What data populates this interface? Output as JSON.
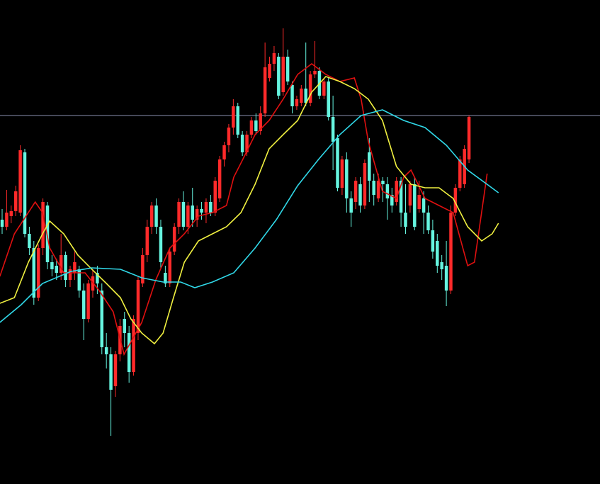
{
  "chart_data": {
    "type": "candlestick",
    "xlim": [
      -0.47,
      131.9
    ],
    "ylim": [
      0,
      683
    ],
    "up_color": "#ff2a2a",
    "down_color": "#66f5e0",
    "open": [
      373,
      363,
      378,
      385,
      383,
      468,
      353,
      333,
      263,
      333,
      393,
      313,
      308,
      298,
      323,
      288,
      298,
      303,
      273,
      233,
      273,
      298,
      273,
      193,
      183,
      138,
      183,
      233,
      213,
      158,
      213,
      283,
      323,
      363,
      393,
      363,
      298,
      283,
      328,
      363,
      398,
      363,
      393,
      373,
      388,
      383,
      398,
      383,
      403,
      458,
      478,
      503,
      533,
      493,
      468,
      493,
      513,
      498,
      523,
      573,
      593,
      603,
      553,
      603,
      563,
      533,
      538,
      558,
      538,
      578,
      583,
      548,
      568,
      518,
      488,
      418,
      458,
      403,
      398,
      423,
      393,
      468,
      428,
      403,
      428,
      423,
      408,
      398,
      428,
      383,
      393,
      423,
      388,
      403,
      383,
      358,
      343,
      313,
      308,
      273,
      383,
      418,
      423,
      458
    ],
    "high": [
      388,
      415,
      393,
      421,
      478,
      473,
      363,
      343,
      338,
      403,
      398,
      323,
      318,
      353,
      328,
      308,
      328,
      308,
      283,
      288,
      303,
      308,
      283,
      213,
      193,
      188,
      233,
      243,
      223,
      238,
      293,
      333,
      373,
      398,
      403,
      373,
      308,
      333,
      368,
      403,
      413,
      398,
      418,
      393,
      398,
      403,
      408,
      433,
      463,
      483,
      508,
      543,
      538,
      498,
      498,
      518,
      523,
      533,
      623,
      603,
      618,
      608,
      643,
      613,
      568,
      548,
      563,
      623,
      583,
      625,
      588,
      573,
      573,
      548,
      493,
      463,
      468,
      413,
      433,
      433,
      458,
      488,
      438,
      438,
      433,
      433,
      418,
      433,
      433,
      423,
      428,
      433,
      428,
      413,
      393,
      373,
      353,
      323,
      343,
      393,
      423,
      463,
      478,
      520
    ],
    "low": [
      353,
      358,
      368,
      378,
      378,
      348,
      323,
      253,
      258,
      323,
      303,
      293,
      288,
      288,
      278,
      278,
      288,
      263,
      203,
      228,
      263,
      268,
      183,
      163,
      68,
      123,
      173,
      193,
      143,
      153,
      203,
      278,
      313,
      353,
      353,
      303,
      278,
      278,
      323,
      353,
      358,
      353,
      363,
      363,
      373,
      368,
      378,
      378,
      398,
      448,
      468,
      493,
      488,
      463,
      463,
      488,
      493,
      493,
      518,
      568,
      583,
      543,
      548,
      563,
      523,
      528,
      533,
      533,
      533,
      573,
      543,
      543,
      513,
      443,
      413,
      408,
      383,
      363,
      388,
      383,
      388,
      398,
      393,
      398,
      398,
      373,
      383,
      393,
      363,
      353,
      383,
      358,
      383,
      353,
      353,
      318,
      298,
      288,
      251,
      268,
      378,
      413,
      418,
      453
    ],
    "close": [
      363,
      383,
      385,
      413,
      471,
      353,
      333,
      263,
      333,
      398,
      313,
      303,
      298,
      323,
      288,
      303,
      313,
      273,
      233,
      283,
      293,
      283,
      193,
      183,
      133,
      183,
      223,
      213,
      158,
      233,
      288,
      323,
      363,
      393,
      363,
      313,
      283,
      328,
      363,
      398,
      363,
      393,
      373,
      388,
      383,
      398,
      383,
      428,
      458,
      478,
      503,
      533,
      493,
      468,
      493,
      513,
      498,
      523,
      588,
      593,
      608,
      548,
      603,
      568,
      533,
      543,
      558,
      538,
      578,
      583,
      548,
      568,
      518,
      483,
      418,
      458,
      403,
      383,
      428,
      393,
      453,
      428,
      408,
      428,
      423,
      403,
      393,
      428,
      383,
      363,
      423,
      363,
      408,
      383,
      358,
      328,
      308,
      303,
      273,
      383,
      418,
      458,
      473,
      518
    ],
    "lines": [
      {
        "color": "#e01010",
        "x": [
          -0.5,
          2.7,
          7.3,
          8.9,
          10.5,
          13.6,
          18.3,
          21.4,
          24.5,
          26.9,
          30.8,
          33.9,
          37,
          40.2,
          43.3,
          46.4,
          49.5,
          51.1,
          52.7,
          55.8,
          58.9,
          62,
          65.2,
          68.3,
          71.4,
          74.5,
          77.7,
          79.2,
          80.8,
          83.9,
          87,
          88.6,
          90.2,
          93.3,
          96.4,
          99.5,
          102.7,
          104.2,
          107
        ],
        "values": [
          293,
          353,
          398,
          383,
          333,
          298,
          298,
          273,
          243,
          183,
          228,
          288,
          333,
          353,
          378,
          383,
          393,
          433,
          453,
          493,
          513,
          543,
          578,
          593,
          578,
          568,
          573,
          543,
          483,
          413,
          403,
          433,
          443,
          403,
          393,
          383,
          308,
          313,
          438
        ]
      },
      {
        "color": "#f0f040",
        "x": [
          -0.5,
          2.7,
          5.8,
          8.9,
          10.5,
          13.6,
          16.7,
          19.8,
          23,
          26.1,
          28.4,
          30.8,
          33.6,
          35.5,
          37.8,
          40.2,
          43.3,
          46.4,
          49.5,
          52.7,
          55.8,
          58.9,
          62,
          65.2,
          68.3,
          71.4,
          74.5,
          77.7,
          80.8,
          83.9,
          87,
          90.2,
          93.3,
          96.4,
          99.5,
          102.7,
          105.8,
          108.1,
          109.5
        ],
        "values": [
          255,
          263,
          313,
          353,
          371,
          353,
          323,
          303,
          283,
          263,
          233,
          213,
          198,
          213,
          263,
          313,
          343,
          353,
          363,
          383,
          423,
          473,
          493,
          513,
          553,
          575,
          568,
          558,
          543,
          513,
          448,
          423,
          418,
          418,
          403,
          363,
          343,
          353,
          368
        ]
      },
      {
        "color": "#30d8e8",
        "x": [
          -0.5,
          4.2,
          8.9,
          15.2,
          19.8,
          26.1,
          30.8,
          35.5,
          39.4,
          42.5,
          46.4,
          51.1,
          55.8,
          60.5,
          65.2,
          69.8,
          74.5,
          79.2,
          83.9,
          88.6,
          93.3,
          98,
          102.7,
          107.4,
          109.5
        ],
        "values": [
          228,
          253,
          283,
          300,
          305,
          303,
          291,
          285,
          285,
          277,
          285,
          298,
          333,
          373,
          421,
          458,
          493,
          520,
          528,
          513,
          503,
          478,
          443,
          421,
          411
        ]
      }
    ],
    "hline": {
      "value": 520,
      "color": "#8a8fb0"
    }
  }
}
